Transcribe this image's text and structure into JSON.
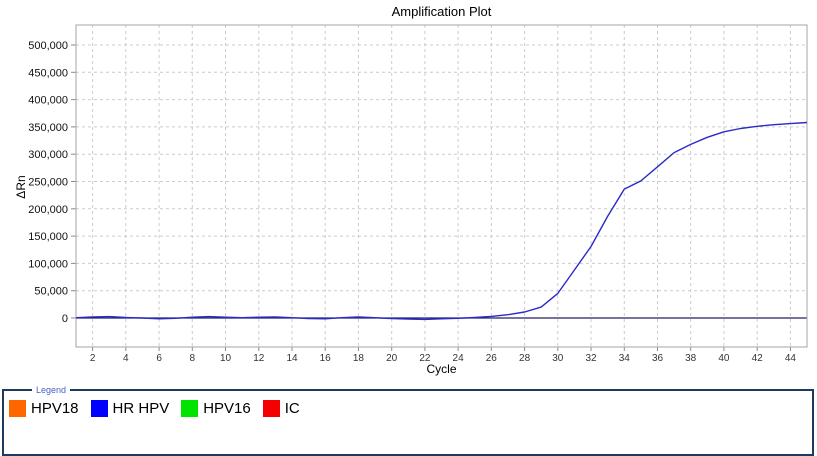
{
  "chart_data": {
    "type": "line",
    "title": "Amplification Plot",
    "xlabel": "Cycle",
    "ylabel": "ΔRn",
    "xlim": [
      1,
      45
    ],
    "ylim": [
      -53100,
      536600
    ],
    "grid": true,
    "x_ticks": [
      2,
      4,
      6,
      8,
      10,
      12,
      14,
      16,
      18,
      20,
      22,
      24,
      26,
      28,
      30,
      32,
      34,
      36,
      38,
      40,
      42,
      44
    ],
    "y_ticks": [
      0,
      50000,
      100000,
      150000,
      200000,
      250000,
      300000,
      350000,
      400000,
      450000,
      500000
    ],
    "y_tick_labels": [
      "0",
      "50,000",
      "100,000",
      "150,000",
      "200,000",
      "250,000",
      "300,000",
      "350,000",
      "400,000",
      "450,000",
      "500,000"
    ],
    "zero_line_color": "#202060",
    "series": [
      {
        "name": "HR HPV",
        "color": "#2a2ac8",
        "x": [
          1,
          2,
          3,
          4,
          5,
          6,
          7,
          8,
          9,
          10,
          11,
          12,
          13,
          14,
          15,
          16,
          17,
          18,
          19,
          20,
          21,
          22,
          23,
          24,
          25,
          26,
          27,
          28,
          29,
          30,
          31,
          32,
          33,
          34,
          35,
          36,
          37,
          38,
          39,
          40,
          41,
          42,
          43,
          44,
          45
        ],
        "y": [
          500,
          2000,
          2500,
          1000,
          0,
          -1500,
          -500,
          1500,
          2500,
          1500,
          500,
          1500,
          2000,
          500,
          -1000,
          -1500,
          500,
          2000,
          500,
          -1000,
          -2000,
          -2500,
          -1500,
          -500,
          1000,
          3000,
          6000,
          11000,
          20000,
          45000,
          88000,
          131000,
          186000,
          236000,
          251000,
          277000,
          303000,
          318000,
          331000,
          341000,
          347000,
          351000,
          354000,
          356000,
          358000
        ]
      }
    ],
    "legend_position": "bottom"
  },
  "legend": {
    "title": "Legend",
    "border_color": "#1c3c5e",
    "items": [
      {
        "label": "HPV18",
        "color": "#ff6600"
      },
      {
        "label": "HR HPV",
        "color": "#0000ff"
      },
      {
        "label": "HPV16",
        "color": "#00e400"
      },
      {
        "label": "IC",
        "color": "#f40000"
      }
    ]
  }
}
